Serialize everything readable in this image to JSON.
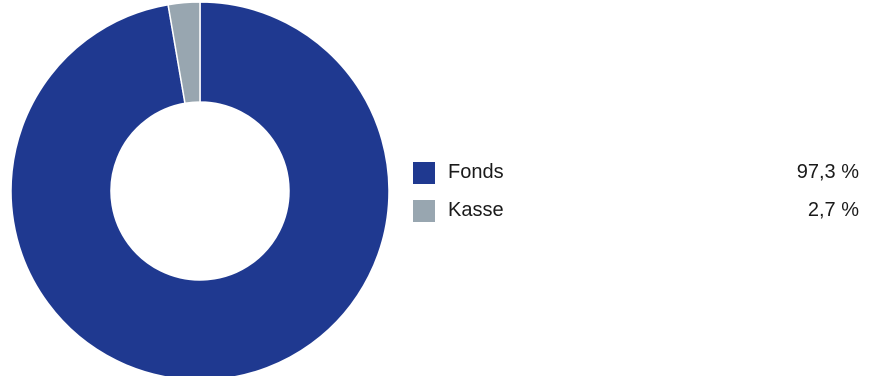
{
  "chart_data": {
    "type": "pie",
    "donut": true,
    "title": "",
    "categories": [
      "Fonds",
      "Kasse"
    ],
    "values": [
      97.3,
      2.7
    ],
    "value_labels": [
      "97,3 %",
      "2,7 %"
    ],
    "colors": [
      "#1f3990",
      "#98a6b0"
    ],
    "legend_position": "right"
  }
}
